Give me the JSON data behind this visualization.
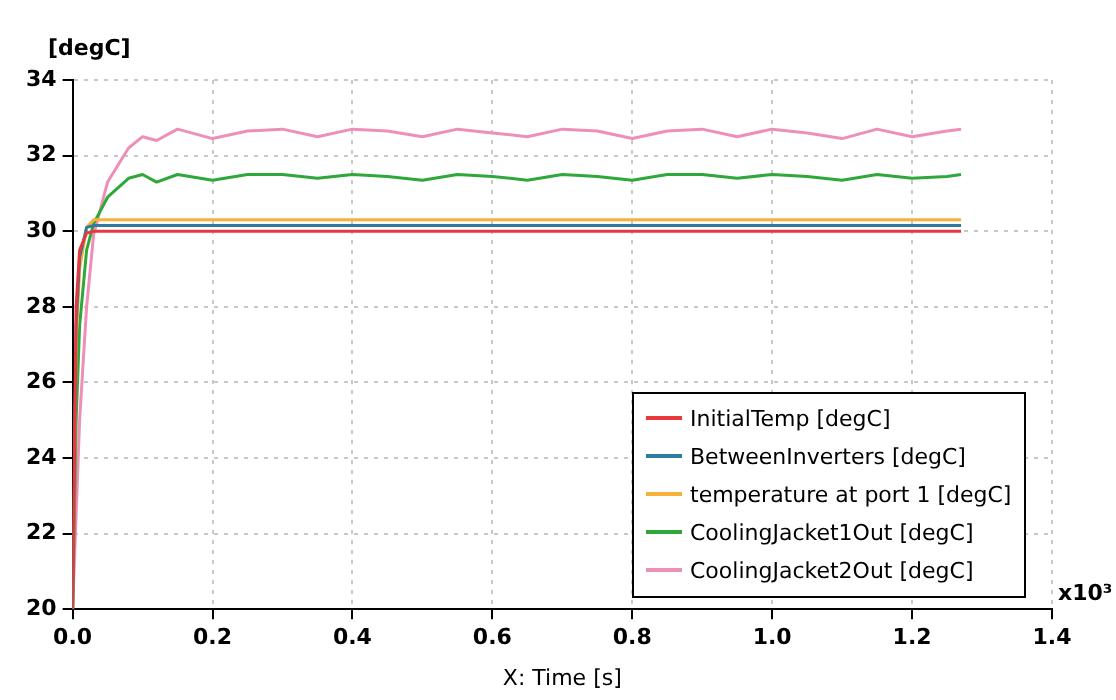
{
  "chart_data": {
    "type": "line",
    "xlabel": "X: Time [s]",
    "ylabel": "[degC]",
    "annotations": [
      "x10³"
    ],
    "x": [
      0,
      0.005,
      0.01,
      0.02,
      0.03,
      0.05,
      0.08,
      0.1,
      0.12,
      0.15,
      0.2,
      0.25,
      0.3,
      0.35,
      0.4,
      0.45,
      0.5,
      0.55,
      0.6,
      0.65,
      0.7,
      0.75,
      0.8,
      0.85,
      0.9,
      0.95,
      1.0,
      1.05,
      1.1,
      1.15,
      1.2,
      1.25,
      1.27
    ],
    "xlim": [
      0,
      1.4
    ],
    "xticks": [
      {
        "value": 0,
        "label": "0.0"
      },
      {
        "value": 0.2,
        "label": "0.2"
      },
      {
        "value": 0.4,
        "label": "0.4"
      },
      {
        "value": 0.6,
        "label": "0.6"
      },
      {
        "value": 0.8,
        "label": "0.8"
      },
      {
        "value": 1,
        "label": "1.0"
      },
      {
        "value": 1.2,
        "label": "1.2"
      },
      {
        "value": 1.4,
        "label": "1.4"
      }
    ],
    "ylim": [
      20,
      34
    ],
    "yticks": [
      20,
      22,
      24,
      26,
      28,
      30,
      32,
      34
    ],
    "grid": true,
    "legend": "bottom right",
    "line_style": "solid",
    "marker": "none",
    "series": [
      {
        "name": "InitialTemp [degC]",
        "color": "#e8383d",
        "values": [
          20,
          28,
          29.5,
          29.95,
          30,
          30,
          30,
          30,
          30,
          30,
          30,
          30,
          30,
          30,
          30,
          30,
          30,
          30,
          30,
          30,
          30,
          30,
          30,
          30,
          30,
          30,
          30,
          30,
          30,
          30,
          30,
          30,
          30
        ]
      },
      {
        "name": "BetweenInverters [degC]",
        "color": "#2f7ca0",
        "values": [
          20,
          27.5,
          29.3,
          30.1,
          30.15,
          30.15,
          30.15,
          30.15,
          30.15,
          30.15,
          30.15,
          30.15,
          30.15,
          30.15,
          30.15,
          30.15,
          30.15,
          30.15,
          30.15,
          30.15,
          30.15,
          30.15,
          30.15,
          30.15,
          30.15,
          30.15,
          30.15,
          30.15,
          30.15,
          30.15,
          30.15,
          30.15,
          30.15
        ]
      },
      {
        "name": "temperature at port 1 [degC]",
        "color": "#f7b13b",
        "values": [
          20,
          27,
          29,
          30.1,
          30.3,
          30.3,
          30.3,
          30.3,
          30.3,
          30.3,
          30.3,
          30.3,
          30.3,
          30.3,
          30.3,
          30.3,
          30.3,
          30.3,
          30.3,
          30.3,
          30.3,
          30.3,
          30.3,
          30.3,
          30.3,
          30.3,
          30.3,
          30.3,
          30.3,
          30.3,
          30.3,
          30.3,
          30.3
        ]
      },
      {
        "name": "CoolingJacket1Out [degC]",
        "color": "#2ea83a",
        "values": [
          20,
          25,
          27.5,
          29.5,
          30.2,
          30.9,
          31.4,
          31.5,
          31.3,
          31.5,
          31.35,
          31.5,
          31.5,
          31.4,
          31.5,
          31.45,
          31.35,
          31.5,
          31.45,
          31.35,
          31.5,
          31.45,
          31.35,
          31.5,
          31.5,
          31.4,
          31.5,
          31.45,
          31.35,
          31.5,
          31.4,
          31.45,
          31.5
        ]
      },
      {
        "name": "CoolingJacket2Out [degC]",
        "color": "#ee8fb7",
        "values": [
          20,
          22.5,
          25,
          28,
          29.9,
          31.3,
          32.2,
          32.5,
          32.4,
          32.7,
          32.45,
          32.65,
          32.7,
          32.5,
          32.7,
          32.65,
          32.5,
          32.7,
          32.6,
          32.5,
          32.7,
          32.65,
          32.45,
          32.65,
          32.7,
          32.5,
          32.7,
          32.6,
          32.45,
          32.7,
          32.5,
          32.65,
          32.7
        ]
      }
    ]
  }
}
